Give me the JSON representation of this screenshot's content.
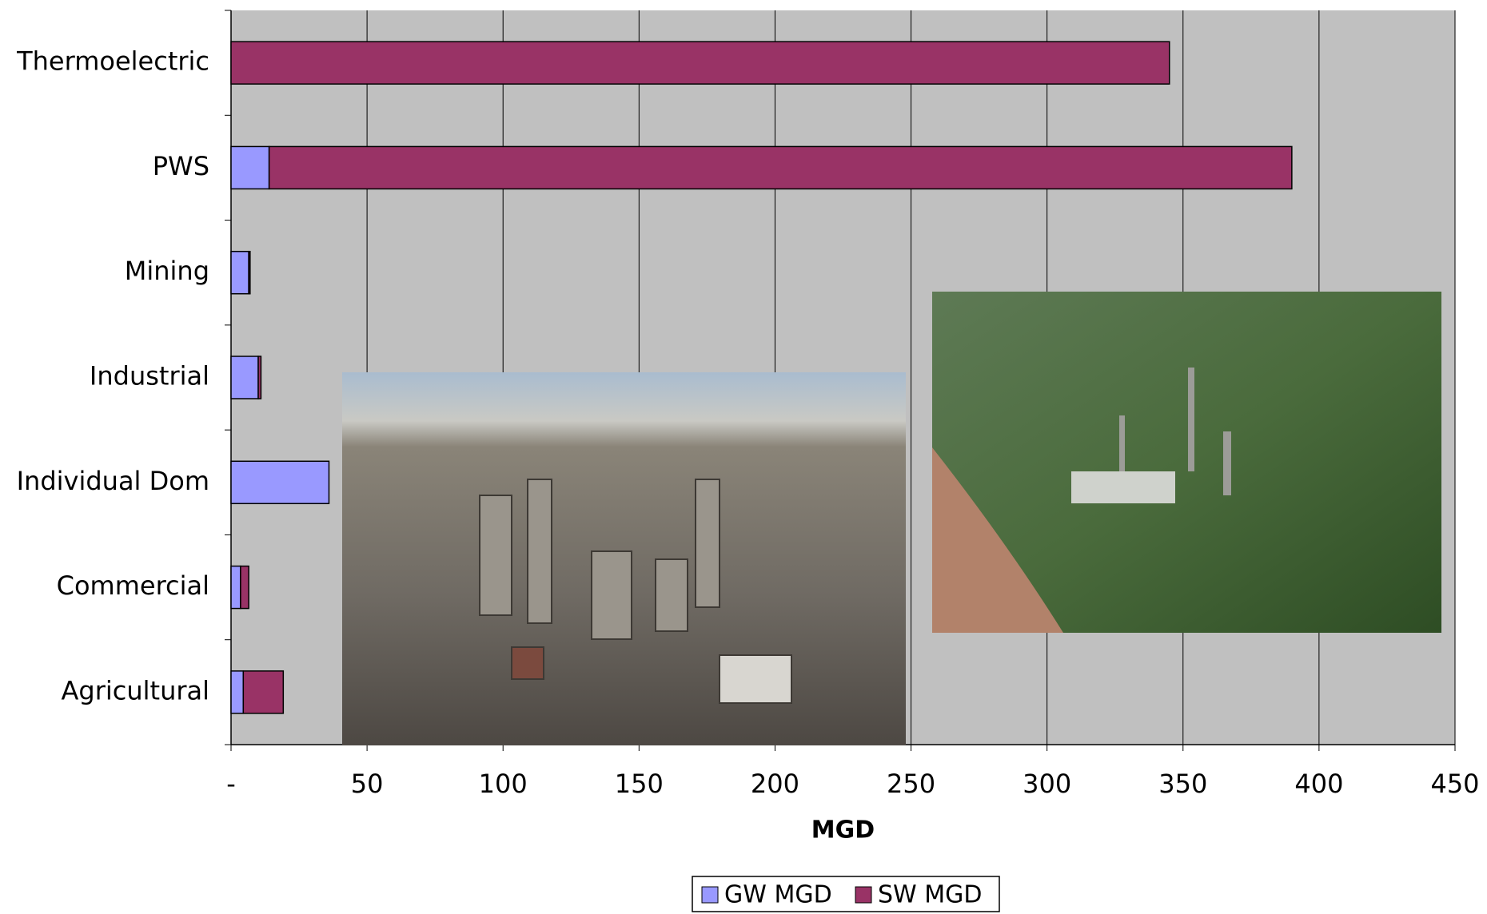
{
  "chart_data": {
    "type": "stacked-barh",
    "categories": [
      "Thermoelectric",
      "PWS",
      "Mining",
      "Industrial",
      "Individual Dom",
      "Commercial",
      "Agricultural"
    ],
    "series": [
      {
        "name": "GW MGD",
        "color": "#9999ff",
        "values": [
          0,
          14,
          6.5,
          10,
          36,
          3.5,
          4.5
        ]
      },
      {
        "name": "SW MGD",
        "color": "#993366",
        "values": [
          345,
          376,
          0.5,
          1,
          0,
          3,
          14.7
        ]
      }
    ],
    "xlim": [
      0,
      450
    ],
    "xticks": [
      {
        "value": 0,
        "label": "-"
      },
      50,
      100,
      150,
      200,
      250,
      300,
      350,
      400,
      450
    ],
    "x_label": "MGD",
    "grid": true,
    "legend": "bottom",
    "plot_background": "#c0c0c0"
  }
}
